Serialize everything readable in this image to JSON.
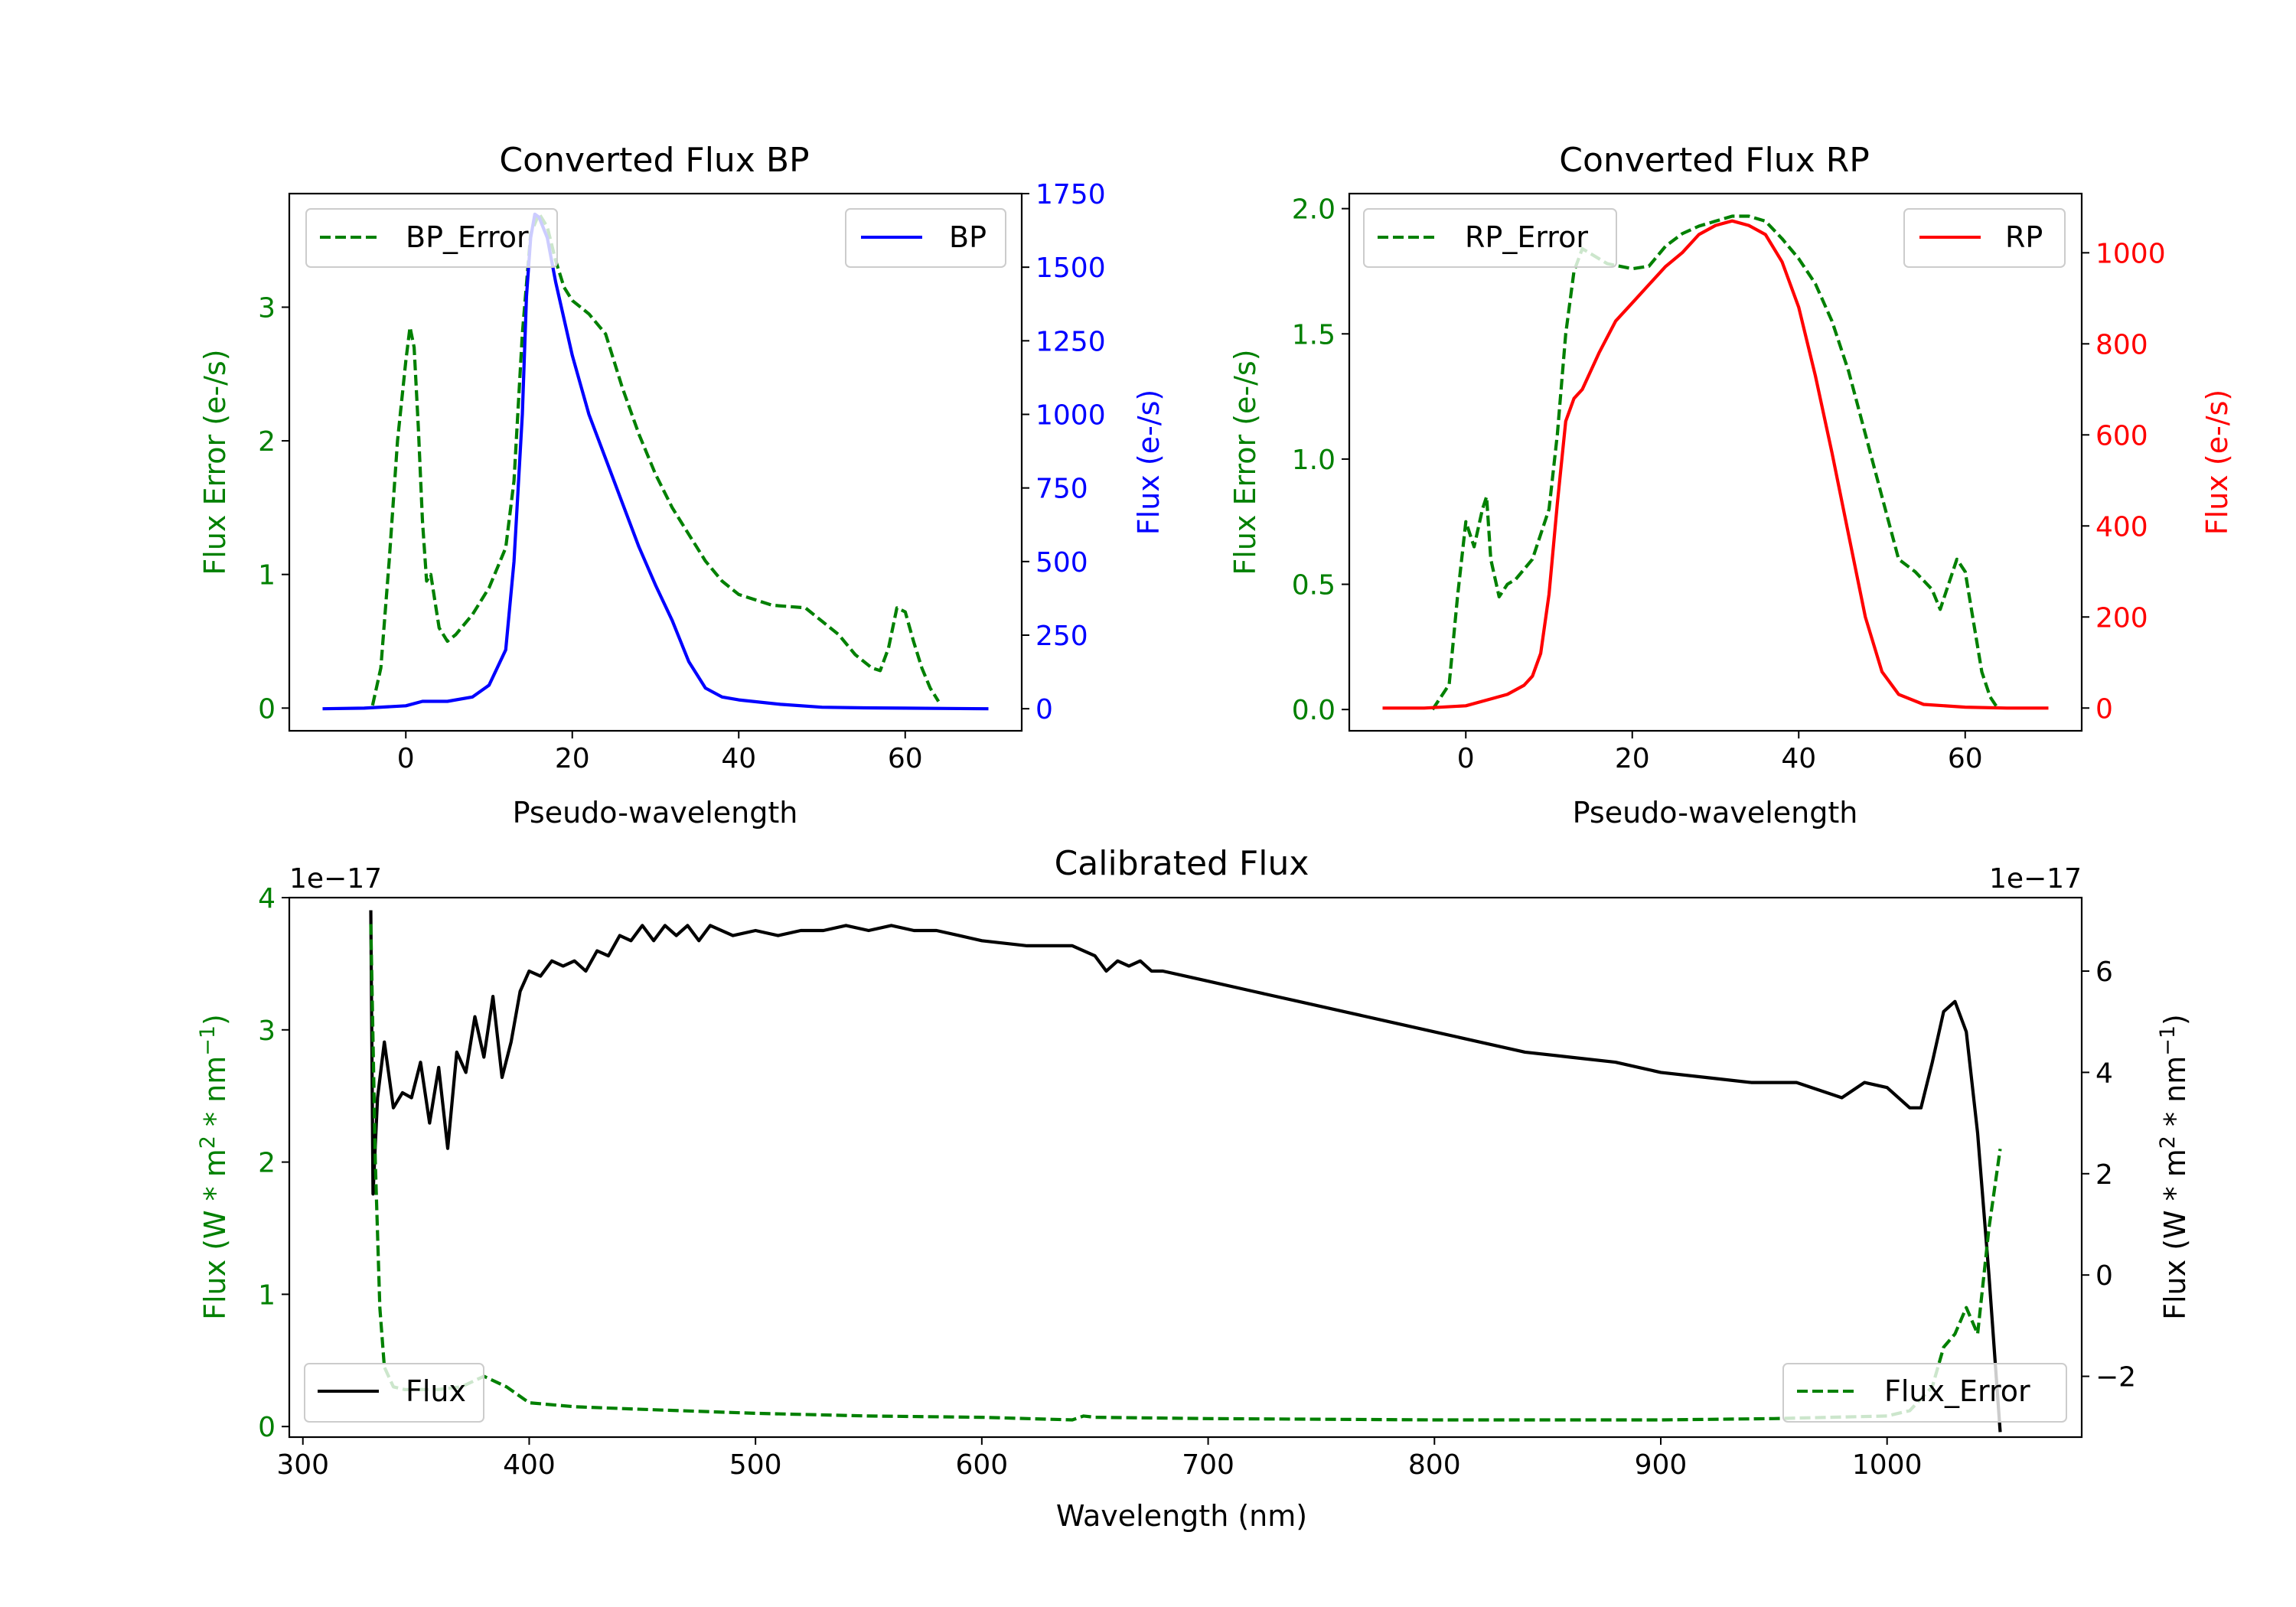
{
  "chart_data": [
    {
      "id": "bp",
      "type": "line",
      "title": "Converted Flux BP",
      "xlabel": "Pseudo-wavelength",
      "xlim": [
        -14,
        74
      ],
      "xticks": [
        0,
        20,
        40,
        60
      ],
      "left_axis": {
        "label": "Flux Error (e-/s)",
        "color": "#008000",
        "lim": [
          -0.17,
          3.85
        ],
        "ticks": [
          0,
          1,
          2,
          3
        ]
      },
      "right_axis": {
        "label": "Flux (e-/s)",
        "color": "#0000ff",
        "lim": [
          -75,
          1750
        ],
        "ticks": [
          0,
          250,
          500,
          750,
          1000,
          1250,
          1500,
          1750
        ]
      },
      "series": [
        {
          "name": "BP_Error",
          "axis": "left",
          "style": "dashed",
          "color": "#008000",
          "legend": "top-left",
          "x": [
            -4,
            -3,
            -2,
            -1,
            0,
            0.5,
            1,
            1.5,
            2,
            2.5,
            3,
            3.5,
            4,
            5,
            6,
            8,
            10,
            12,
            13,
            14,
            15,
            16,
            17,
            18,
            19,
            20,
            22,
            24,
            26,
            28,
            30,
            32,
            34,
            36,
            38,
            40,
            44,
            48,
            50,
            52,
            54,
            56,
            57,
            58,
            59,
            60,
            61,
            62,
            63,
            64
          ],
          "values": [
            0.02,
            0.3,
            1.1,
            2.0,
            2.6,
            2.85,
            2.7,
            2.1,
            1.4,
            0.95,
            1.0,
            0.8,
            0.6,
            0.5,
            0.55,
            0.7,
            0.9,
            1.2,
            1.7,
            2.8,
            3.55,
            3.7,
            3.6,
            3.35,
            3.15,
            3.05,
            2.95,
            2.8,
            2.4,
            2.05,
            1.75,
            1.5,
            1.3,
            1.1,
            0.95,
            0.85,
            0.77,
            0.75,
            0.65,
            0.55,
            0.4,
            0.3,
            0.28,
            0.45,
            0.75,
            0.72,
            0.5,
            0.3,
            0.15,
            0.05
          ]
        },
        {
          "name": "BP",
          "axis": "right",
          "style": "solid",
          "color": "#0000ff",
          "legend": "top-right",
          "x": [
            -10,
            -5,
            0,
            2,
            5,
            8,
            10,
            12,
            13,
            14,
            14.5,
            15,
            15.5,
            16,
            17,
            18,
            20,
            22,
            24,
            26,
            28,
            30,
            32,
            34,
            36,
            38,
            40,
            45,
            50,
            55,
            60,
            65,
            70
          ],
          "values": [
            0,
            2,
            10,
            25,
            25,
            40,
            80,
            200,
            500,
            1000,
            1400,
            1600,
            1680,
            1670,
            1600,
            1450,
            1200,
            1000,
            850,
            700,
            550,
            420,
            300,
            160,
            70,
            40,
            30,
            15,
            5,
            3,
            2,
            1,
            0
          ]
        }
      ]
    },
    {
      "id": "rp",
      "type": "line",
      "title": "Converted Flux RP",
      "xlabel": "Pseudo-wavelength",
      "xlim": [
        -14,
        74
      ],
      "xticks": [
        0,
        20,
        40,
        60
      ],
      "left_axis": {
        "label": "Flux Error (e-/s)",
        "color": "#008000",
        "lim": [
          -0.085,
          2.06
        ],
        "ticks": [
          0.0,
          0.5,
          1.0,
          1.5,
          2.0
        ]
      },
      "right_axis": {
        "label": "Flux (e-/s)",
        "color": "#ff0000",
        "lim": [
          -50,
          1130
        ],
        "ticks": [
          0,
          200,
          400,
          600,
          800,
          1000
        ]
      },
      "series": [
        {
          "name": "RP_Error",
          "axis": "left",
          "style": "dashed",
          "color": "#008000",
          "legend": "top-left",
          "x": [
            -4,
            -2,
            -1,
            0,
            1,
            2,
            2.5,
            3,
            4,
            5,
            6,
            8,
            10,
            11,
            12,
            13,
            14,
            15,
            17,
            20,
            22,
            24,
            26,
            28,
            30,
            32,
            34,
            36,
            38,
            40,
            42,
            44,
            46,
            48,
            50,
            52,
            54,
            56,
            57,
            58,
            59,
            60,
            61,
            62,
            63,
            64
          ],
          "values": [
            0.0,
            0.1,
            0.45,
            0.75,
            0.65,
            0.8,
            0.85,
            0.6,
            0.45,
            0.5,
            0.52,
            0.6,
            0.8,
            1.1,
            1.5,
            1.75,
            1.84,
            1.82,
            1.78,
            1.76,
            1.77,
            1.85,
            1.9,
            1.93,
            1.95,
            1.97,
            1.97,
            1.95,
            1.88,
            1.8,
            1.7,
            1.55,
            1.35,
            1.1,
            0.85,
            0.6,
            0.55,
            0.48,
            0.4,
            0.5,
            0.6,
            0.55,
            0.35,
            0.15,
            0.05,
            0.0
          ]
        },
        {
          "name": "RP",
          "axis": "right",
          "style": "solid",
          "color": "#ff0000",
          "legend": "top-right",
          "x": [
            -10,
            -5,
            0,
            3,
            5,
            7,
            8,
            9,
            10,
            11,
            12,
            13,
            14,
            16,
            18,
            20,
            22,
            24,
            26,
            28,
            30,
            32,
            34,
            36,
            38,
            40,
            42,
            44,
            46,
            48,
            50,
            52,
            55,
            60,
            65,
            70
          ],
          "values": [
            0,
            0,
            5,
            20,
            30,
            50,
            70,
            120,
            250,
            450,
            630,
            680,
            700,
            780,
            850,
            890,
            930,
            970,
            1000,
            1040,
            1060,
            1070,
            1060,
            1040,
            980,
            880,
            730,
            560,
            380,
            200,
            80,
            30,
            8,
            2,
            0,
            0
          ]
        }
      ]
    },
    {
      "id": "calibrated",
      "type": "line",
      "title": "Calibrated Flux",
      "xlabel": "Wavelength (nm)",
      "xlim": [
        294,
        1086
      ],
      "xticks": [
        300,
        400,
        500,
        600,
        700,
        800,
        900,
        1000
      ],
      "left_axis": {
        "label": "Flux (W * m$^2$ * nm$^{-1}$)",
        "label_prefix": "Flux (W * m",
        "label_mid": " * nm",
        "label_suffix": ")",
        "sup_a": "2",
        "sup_b": "−1",
        "offset_text": "1e−17",
        "color": "#008000",
        "lim": [
          -0.08,
          4.0
        ],
        "ticks": [
          0,
          1,
          2,
          3,
          4
        ]
      },
      "right_axis": {
        "label_prefix": "Flux (W * m",
        "label_mid": " * nm",
        "label_suffix": ")",
        "sup_a": "2",
        "sup_b": "−1",
        "offset_text": "1e−17",
        "color": "#000000",
        "lim": [
          -3.2,
          7.45
        ],
        "ticks": [
          -2,
          0,
          2,
          4,
          6
        ]
      },
      "series": [
        {
          "name": "Flux",
          "axis": "right",
          "style": "solid",
          "color": "#000000",
          "legend": "bottom-left",
          "x": [
            330,
            331,
            333,
            336,
            340,
            344,
            348,
            352,
            356,
            360,
            364,
            368,
            372,
            376,
            380,
            384,
            388,
            392,
            396,
            400,
            405,
            410,
            415,
            420,
            425,
            430,
            435,
            440,
            445,
            450,
            455,
            460,
            465,
            470,
            475,
            480,
            490,
            500,
            510,
            520,
            530,
            540,
            550,
            560,
            570,
            580,
            590,
            600,
            620,
            640,
            650,
            655,
            660,
            665,
            670,
            675,
            680,
            690,
            700,
            720,
            740,
            760,
            780,
            800,
            820,
            840,
            860,
            880,
            900,
            920,
            940,
            960,
            980,
            990,
            1000,
            1010,
            1015,
            1020,
            1025,
            1030,
            1035,
            1040,
            1045,
            1050
          ],
          "values": [
            7.2,
            1.6,
            3.5,
            4.6,
            3.3,
            3.6,
            3.5,
            4.2,
            3.0,
            4.1,
            2.5,
            4.4,
            4.0,
            5.1,
            4.3,
            5.5,
            3.9,
            4.6,
            5.6,
            6.0,
            5.9,
            6.2,
            6.1,
            6.2,
            6.0,
            6.4,
            6.3,
            6.7,
            6.6,
            6.9,
            6.6,
            6.9,
            6.7,
            6.9,
            6.6,
            6.9,
            6.7,
            6.8,
            6.7,
            6.8,
            6.8,
            6.9,
            6.8,
            6.9,
            6.8,
            6.8,
            6.7,
            6.6,
            6.5,
            6.5,
            6.3,
            6.0,
            6.2,
            6.1,
            6.2,
            6.0,
            6.0,
            5.9,
            5.8,
            5.6,
            5.4,
            5.2,
            5.0,
            4.8,
            4.6,
            4.4,
            4.3,
            4.2,
            4.0,
            3.9,
            3.8,
            3.8,
            3.5,
            3.8,
            3.7,
            3.3,
            3.3,
            4.2,
            5.2,
            5.4,
            4.8,
            2.8,
            0.0,
            -3.1
          ]
        },
        {
          "name": "Flux_Error",
          "axis": "left",
          "style": "dashed",
          "color": "#008000",
          "legend": "bottom-right",
          "x": [
            330,
            332,
            334,
            336,
            340,
            345,
            350,
            360,
            370,
            380,
            390,
            400,
            420,
            450,
            500,
            550,
            600,
            640,
            645,
            650,
            700,
            800,
            900,
            950,
            1000,
            1010,
            1020,
            1025,
            1030,
            1035,
            1040,
            1045,
            1050
          ],
          "values": [
            3.8,
            2.0,
            0.9,
            0.45,
            0.3,
            0.28,
            0.28,
            0.28,
            0.3,
            0.38,
            0.3,
            0.18,
            0.15,
            0.13,
            0.1,
            0.08,
            0.07,
            0.05,
            0.08,
            0.07,
            0.06,
            0.05,
            0.05,
            0.06,
            0.08,
            0.12,
            0.3,
            0.6,
            0.7,
            0.9,
            0.7,
            1.5,
            2.1
          ]
        }
      ]
    }
  ]
}
